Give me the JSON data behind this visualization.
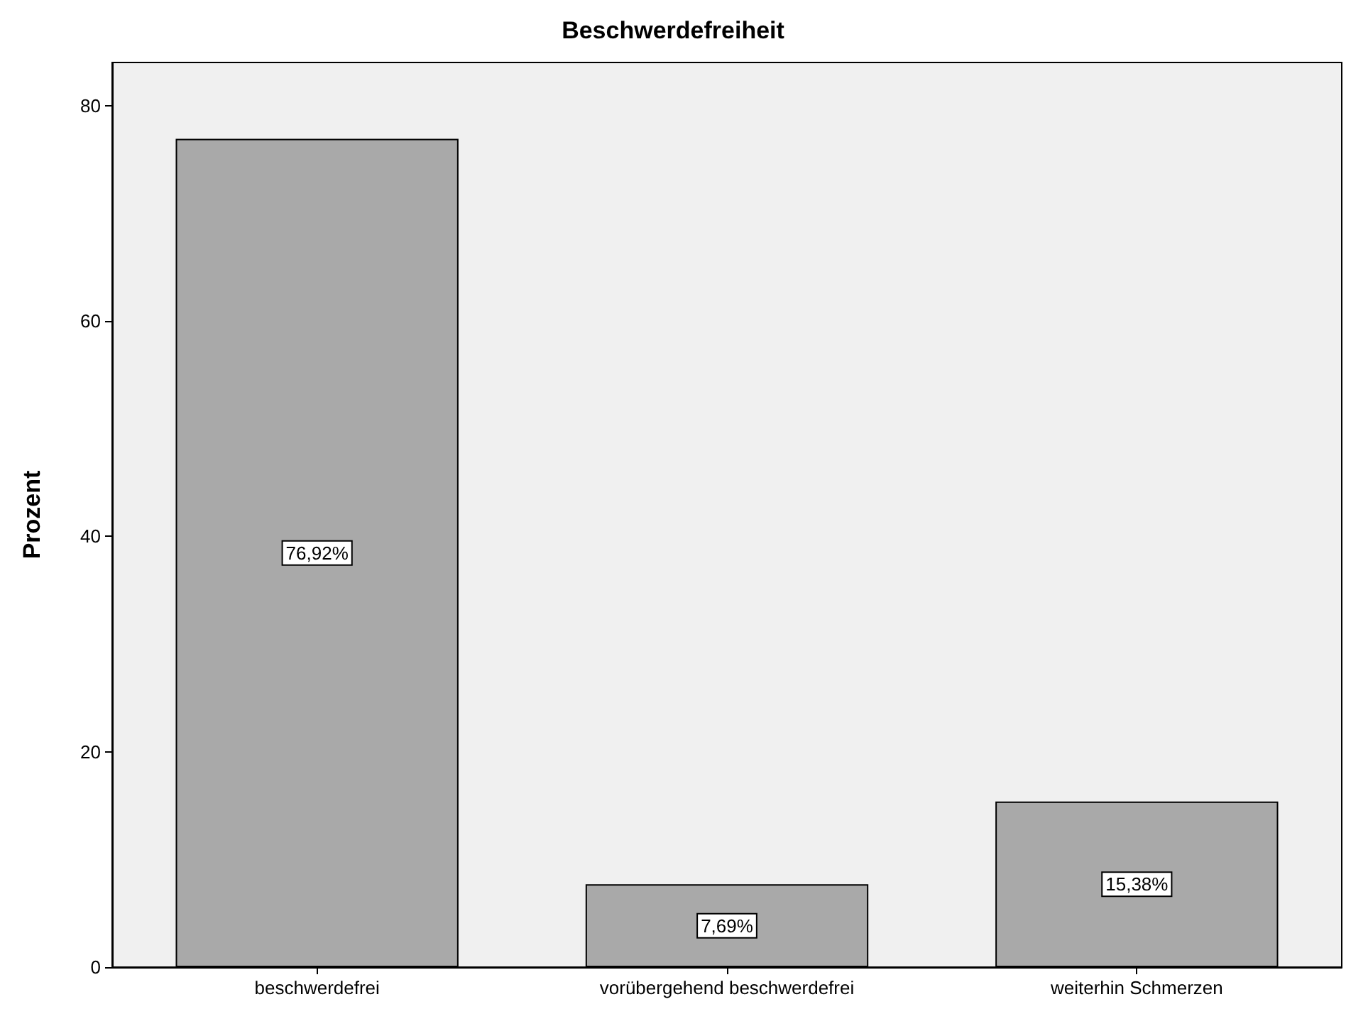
{
  "chart_data": {
    "type": "bar",
    "title": "Beschwerdefreiheit",
    "ylabel": "Prozent",
    "categories": [
      "beschwerdefrei",
      "vorübergehend beschwerdefrei",
      "weiterhin Schmerzen"
    ],
    "values": [
      76.92,
      7.69,
      15.38
    ],
    "color": "#a9a9a9",
    "value_labels": [
      "76,92%",
      "7,69%",
      "15,38%"
    ],
    "ylim": [
      0,
      84
    ],
    "yticks": [
      0,
      20,
      40,
      60,
      80
    ]
  }
}
